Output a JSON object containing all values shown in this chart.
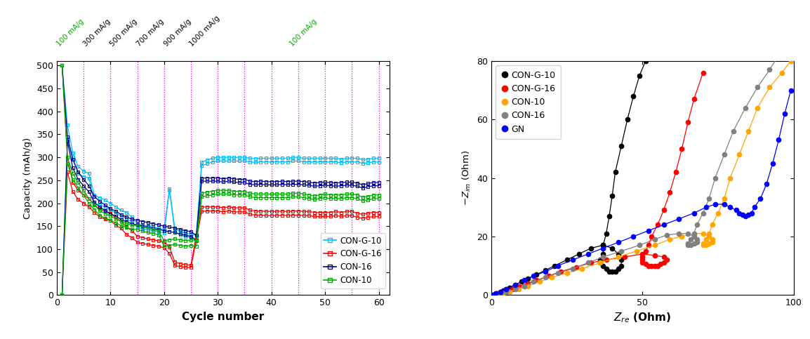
{
  "left": {
    "xlabel": "Cycle number",
    "ylabel": "Capacity (mAh/g)",
    "xlim": [
      0,
      62
    ],
    "ylim": [
      0,
      510
    ],
    "yticks": [
      0,
      50,
      100,
      150,
      200,
      250,
      300,
      350,
      400,
      450,
      500
    ],
    "xticks": [
      0,
      10,
      20,
      30,
      40,
      50,
      60
    ],
    "vlines": [
      5,
      10,
      15,
      20,
      25,
      30,
      35,
      40,
      45,
      50,
      55,
      60
    ],
    "rate_labels": [
      {
        "x": 2.5,
        "text": "100 mA/g",
        "color": "#00aa00"
      },
      {
        "x": 7.5,
        "text": "300 mA/g",
        "color": "#000000"
      },
      {
        "x": 12.5,
        "text": "500 mA/g",
        "color": "#000000"
      },
      {
        "x": 17.5,
        "text": "700 mA/g",
        "color": "#000000"
      },
      {
        "x": 22.5,
        "text": "900 mA/g",
        "color": "#000000"
      },
      {
        "x": 27.5,
        "text": "1000 mA/g",
        "color": "#000000"
      },
      {
        "x": 46,
        "text": "100 mA/g",
        "color": "#00aa00"
      }
    ],
    "series": [
      {
        "label": "CON-G-10",
        "color": "#00bfff",
        "discharge": [
          500,
          370,
          310,
          280,
          270,
          265,
          218,
          212,
          207,
          200,
          192,
          185,
          180,
          170,
          155,
          152,
          150,
          148,
          145,
          143,
          232,
          145,
          138,
          135,
          132,
          130,
          289,
          294,
          298,
          300,
          300,
          300,
          300,
          300,
          300,
          298,
          297,
          298,
          298,
          298,
          298,
          298,
          298,
          300,
          300,
          298,
          298,
          298,
          298,
          298,
          298,
          298,
          296,
          298,
          298,
          298,
          295,
          296,
          298,
          298
        ],
        "charge": [
          0,
          340,
          300,
          265,
          258,
          255,
          200,
          196,
          192,
          186,
          178,
          172,
          167,
          158,
          148,
          144,
          142,
          140,
          138,
          135,
          228,
          138,
          130,
          128,
          125,
          123,
          282,
          286,
          290,
          292,
          292,
          292,
          292,
          292,
          292,
          290,
          289,
          290,
          290,
          290,
          290,
          290,
          290,
          292,
          292,
          290,
          290,
          290,
          290,
          290,
          290,
          290,
          288,
          290,
          290,
          290,
          287,
          288,
          290,
          290
        ]
      },
      {
        "label": "CON-G-16",
        "color": "#ff0000",
        "discharge": [
          500,
          300,
          245,
          228,
          218,
          210,
          197,
          187,
          182,
          178,
          168,
          160,
          148,
          140,
          128,
          125,
          122,
          120,
          118,
          115,
          105,
          72,
          68,
          66,
          65,
          130,
          192,
          192,
          192,
          192,
          190,
          192,
          190,
          190,
          190,
          185,
          183,
          183,
          182,
          182,
          182,
          183,
          182,
          183,
          183,
          182,
          182,
          180,
          180,
          180,
          180,
          182,
          180,
          182,
          182,
          178,
          176,
          178,
          180,
          180
        ],
        "charge": [
          0,
          268,
          225,
          208,
          200,
          192,
          180,
          170,
          165,
          162,
          152,
          145,
          132,
          125,
          115,
          112,
          110,
          108,
          106,
          103,
          90,
          64,
          62,
          60,
          60,
          120,
          182,
          183,
          183,
          183,
          181,
          183,
          181,
          181,
          181,
          176,
          174,
          174,
          173,
          173,
          173,
          174,
          173,
          174,
          174,
          173,
          173,
          171,
          171,
          171,
          171,
          173,
          171,
          173,
          173,
          169,
          167,
          169,
          171,
          171
        ]
      },
      {
        "label": "CON-16",
        "color": "#00008b",
        "discharge": [
          500,
          345,
          295,
          268,
          252,
          238,
          215,
          204,
          196,
          188,
          183,
          175,
          170,
          165,
          163,
          160,
          158,
          155,
          153,
          150,
          148,
          146,
          143,
          140,
          138,
          130,
          255,
          255,
          255,
          255,
          253,
          255,
          253,
          252,
          252,
          248,
          247,
          248,
          247,
          247,
          247,
          248,
          247,
          248,
          248,
          247,
          246,
          244,
          245,
          246,
          245,
          244,
          245,
          246,
          246,
          244,
          240,
          243,
          245,
          245
        ],
        "charge": [
          0,
          335,
          277,
          252,
          238,
          225,
          202,
          192,
          184,
          177,
          172,
          164,
          160,
          155,
          153,
          150,
          148,
          145,
          143,
          140,
          138,
          136,
          133,
          130,
          128,
          118,
          248,
          248,
          248,
          248,
          246,
          248,
          246,
          245,
          245,
          241,
          240,
          241,
          240,
          240,
          240,
          241,
          240,
          241,
          241,
          240,
          239,
          237,
          238,
          239,
          238,
          237,
          238,
          239,
          239,
          237,
          233,
          236,
          238,
          238
        ]
      },
      {
        "label": "CON-10",
        "color": "#00aa00",
        "discharge": [
          500,
          300,
          265,
          245,
          228,
          210,
          196,
          184,
          177,
          172,
          166,
          160,
          156,
          152,
          152,
          148,
          145,
          143,
          140,
          118,
          120,
          122,
          120,
          118,
          120,
          118,
          222,
          224,
          226,
          228,
          228,
          228,
          226,
          226,
          226,
          222,
          220,
          220,
          220,
          220,
          220,
          220,
          220,
          222,
          222,
          220,
          218,
          216,
          218,
          220,
          218,
          218,
          218,
          220,
          220,
          218,
          213,
          215,
          218,
          218
        ],
        "charge": [
          0,
          287,
          252,
          233,
          218,
          200,
          186,
          174,
          167,
          163,
          157,
          151,
          147,
          143,
          143,
          139,
          136,
          134,
          131,
          106,
          108,
          110,
          108,
          106,
          108,
          106,
          214,
          216,
          218,
          220,
          220,
          220,
          218,
          218,
          218,
          214,
          212,
          212,
          212,
          212,
          212,
          212,
          212,
          214,
          214,
          212,
          210,
          208,
          210,
          212,
          210,
          210,
          210,
          212,
          212,
          210,
          205,
          207,
          210,
          210
        ]
      }
    ],
    "legend": [
      {
        "label": "CON-G-10",
        "color": "#00bfff"
      },
      {
        "label": "CON-G-16",
        "color": "#ff0000"
      },
      {
        "label": "CON-16",
        "color": "#00008b"
      },
      {
        "label": "CON-10",
        "color": "#00aa00"
      }
    ]
  },
  "right": {
    "xlim": [
      0,
      100
    ],
    "ylim": [
      0,
      80
    ],
    "xticks": [
      0,
      50,
      100
    ],
    "yticks": [
      0,
      20,
      40,
      60,
      80
    ],
    "series": [
      {
        "label": "CON-G-10",
        "color": "#000000",
        "zre": [
          1,
          2,
          3,
          4,
          5,
          6,
          8,
          10,
          12,
          15,
          18,
          21,
          25,
          29,
          33,
          37,
          40,
          42,
          43,
          43,
          42,
          41,
          40,
          39,
          38,
          37,
          36,
          36,
          37,
          37,
          38,
          39,
          40,
          41,
          43,
          45,
          47,
          49,
          51
        ],
        "zim": [
          0,
          0.5,
          1,
          1.5,
          2,
          2.5,
          3.5,
          4.5,
          5.5,
          7,
          8.5,
          10,
          12,
          14,
          16,
          17,
          16,
          14,
          12,
          10,
          9,
          8,
          8,
          8,
          9,
          10,
          11,
          12,
          14,
          17,
          21,
          27,
          34,
          42,
          51,
          60,
          68,
          75,
          80
        ]
      },
      {
        "label": "CON-G-16",
        "color": "#ff0000",
        "zre": [
          1,
          2,
          3,
          5,
          7,
          9,
          12,
          15,
          19,
          23,
          28,
          33,
          38,
          44,
          50,
          54,
          57,
          58,
          57,
          56,
          55,
          54,
          53,
          52,
          51,
          50,
          50,
          50,
          51,
          52,
          53,
          55,
          57,
          59,
          61,
          63,
          65,
          67,
          70
        ],
        "zim": [
          0,
          0.5,
          1,
          1.5,
          2,
          3,
          4,
          5,
          6.5,
          8,
          9.5,
          11,
          12,
          13,
          14,
          13.5,
          13,
          12,
          11,
          10.5,
          10,
          10,
          10,
          10,
          10.5,
          11,
          12,
          13,
          15,
          17,
          20,
          24,
          29,
          35,
          42,
          50,
          59,
          67,
          76
        ]
      },
      {
        "label": "CON-10",
        "color": "#ffa500",
        "zre": [
          2,
          4,
          6,
          9,
          12,
          16,
          20,
          25,
          30,
          36,
          42,
          48,
          54,
          59,
          63,
          67,
          70,
          72,
          73,
          73,
          72,
          71,
          70,
          70,
          71,
          72,
          73,
          75,
          77,
          79,
          82,
          85,
          88,
          92,
          96,
          99
        ],
        "zim": [
          0,
          0.5,
          1,
          2,
          3,
          4.5,
          6,
          7.5,
          9,
          11,
          13,
          15,
          17,
          19,
          20,
          21,
          21,
          20,
          19,
          18,
          17.5,
          17,
          17,
          17.5,
          19,
          21,
          24,
          28,
          33,
          40,
          48,
          56,
          64,
          71,
          76,
          80
        ]
      },
      {
        "label": "CON-16",
        "color": "#808080",
        "zre": [
          1,
          3,
          5,
          8,
          11,
          14,
          18,
          22,
          27,
          32,
          37,
          43,
          49,
          54,
          58,
          62,
          65,
          67,
          68,
          68,
          67,
          66,
          65,
          65,
          66,
          67,
          68,
          70,
          72,
          74,
          77,
          80,
          84,
          88,
          92,
          95
        ],
        "zim": [
          0,
          0.5,
          1,
          2,
          3,
          4.5,
          6,
          7.5,
          9,
          11,
          13,
          15,
          17,
          19,
          20.5,
          21,
          21,
          20,
          19,
          18,
          17.5,
          17,
          17,
          17.5,
          19,
          21,
          24,
          28,
          33,
          40,
          48,
          56,
          64,
          71,
          77,
          82
        ]
      },
      {
        "label": "GN",
        "color": "#0000ff",
        "zre": [
          0.5,
          1.5,
          3,
          5,
          8,
          11,
          14,
          18,
          22,
          27,
          32,
          37,
          42,
          47,
          52,
          57,
          62,
          67,
          71,
          74,
          77,
          79,
          81,
          82,
          83,
          84,
          85,
          86,
          87,
          89,
          91,
          93,
          95,
          97,
          99
        ],
        "zim": [
          0,
          0.5,
          1,
          2,
          3.5,
          5,
          6.5,
          8,
          10,
          12,
          14,
          16,
          18,
          20,
          22,
          24,
          26,
          28,
          30,
          31,
          31,
          30,
          29,
          28,
          27.5,
          27,
          27.5,
          28,
          30,
          33,
          38,
          45,
          53,
          62,
          70
        ]
      }
    ],
    "legend": [
      {
        "label": "CON-G-10",
        "color": "#000000"
      },
      {
        "label": "CON-G-16",
        "color": "#ff0000"
      },
      {
        "label": "CON-10",
        "color": "#ffa500"
      },
      {
        "label": "CON-16",
        "color": "#808080"
      },
      {
        "label": "GN",
        "color": "#0000ff"
      }
    ]
  }
}
